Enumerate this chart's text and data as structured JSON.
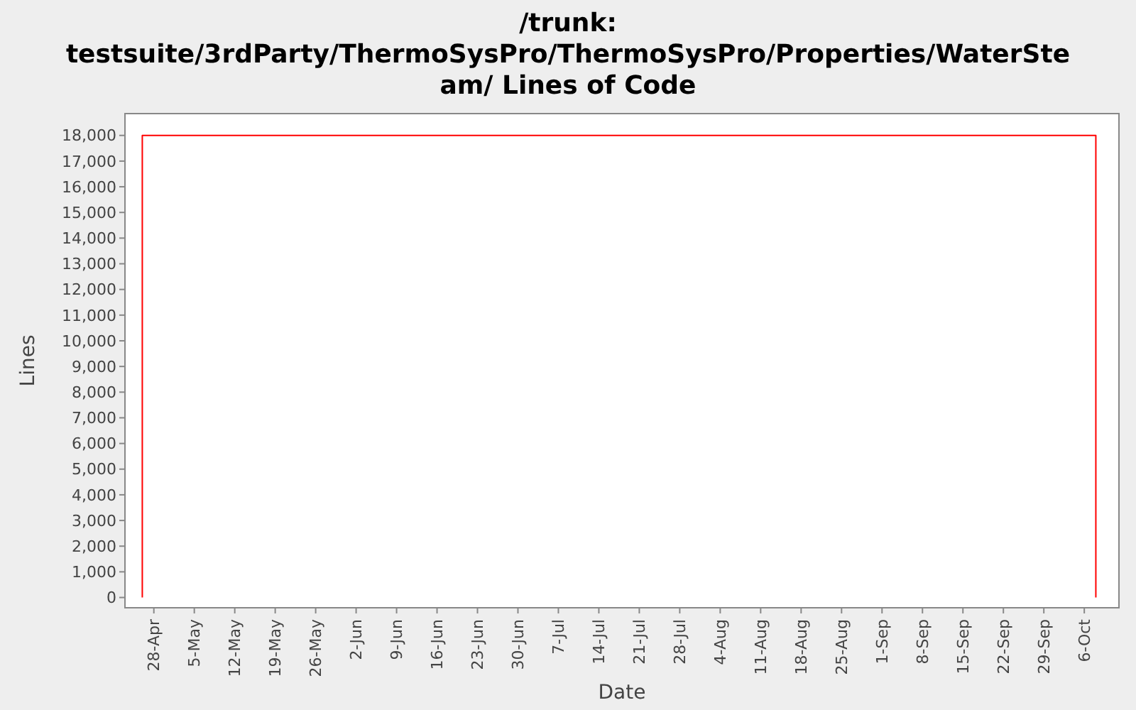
{
  "chart_data": {
    "type": "line",
    "title": "/trunk: testsuite/3rdParty/ThermoSysPro/ThermoSysPro/Properties/WaterSteam/ Lines of Code",
    "xlabel": "Date",
    "ylabel": "Lines",
    "series": [
      {
        "color": "#ff0000",
        "x": [
          "--04-26",
          "--04-26",
          "--10-08",
          "--10-08"
        ],
        "values": [
          0,
          18000,
          18000,
          0
        ]
      }
    ],
    "xlim": [
      "--04-23",
      "--10-12"
    ],
    "ylim": [
      -400,
      18850
    ],
    "xticks": [
      {
        "value": "--04-28",
        "label": "28-Apr"
      },
      {
        "value": "--05-05",
        "label": "5-May"
      },
      {
        "value": "--05-12",
        "label": "12-May"
      },
      {
        "value": "--05-19",
        "label": "19-May"
      },
      {
        "value": "--05-26",
        "label": "26-May"
      },
      {
        "value": "--06-02",
        "label": "2-Jun"
      },
      {
        "value": "--06-09",
        "label": "9-Jun"
      },
      {
        "value": "--06-16",
        "label": "16-Jun"
      },
      {
        "value": "--06-23",
        "label": "23-Jun"
      },
      {
        "value": "--06-30",
        "label": "30-Jun"
      },
      {
        "value": "--07-07",
        "label": "7-Jul"
      },
      {
        "value": "--07-14",
        "label": "14-Jul"
      },
      {
        "value": "--07-21",
        "label": "21-Jul"
      },
      {
        "value": "--07-28",
        "label": "28-Jul"
      },
      {
        "value": "--08-04",
        "label": "4-Aug"
      },
      {
        "value": "--08-11",
        "label": "11-Aug"
      },
      {
        "value": "--08-18",
        "label": "18-Aug"
      },
      {
        "value": "--08-25",
        "label": "25-Aug"
      },
      {
        "value": "--09-01",
        "label": "1-Sep"
      },
      {
        "value": "--09-08",
        "label": "8-Sep"
      },
      {
        "value": "--09-15",
        "label": "15-Sep"
      },
      {
        "value": "--09-22",
        "label": "22-Sep"
      },
      {
        "value": "--09-29",
        "label": "29-Sep"
      },
      {
        "value": "--10-06",
        "label": "6-Oct"
      }
    ],
    "yticks": [
      0,
      {
        "value": 1000,
        "label": "1,000"
      },
      {
        "value": 2000,
        "label": "2,000"
      },
      {
        "value": 3000,
        "label": "3,000"
      },
      {
        "value": 4000,
        "label": "4,000"
      },
      {
        "value": 5000,
        "label": "5,000"
      },
      {
        "value": 6000,
        "label": "6,000"
      },
      {
        "value": 7000,
        "label": "7,000"
      },
      {
        "value": 8000,
        "label": "8,000"
      },
      {
        "value": 9000,
        "label": "9,000"
      },
      {
        "value": 10000,
        "label": "10,000"
      },
      {
        "value": 11000,
        "label": "11,000"
      },
      {
        "value": 12000,
        "label": "12,000"
      },
      {
        "value": 13000,
        "label": "13,000"
      },
      {
        "value": 14000,
        "label": "14,000"
      },
      {
        "value": 15000,
        "label": "15,000"
      },
      {
        "value": 16000,
        "label": "16,000"
      },
      {
        "value": 17000,
        "label": "17,000"
      },
      {
        "value": 18000,
        "label": "18,000"
      }
    ],
    "grid": false,
    "line_style": "solid"
  }
}
